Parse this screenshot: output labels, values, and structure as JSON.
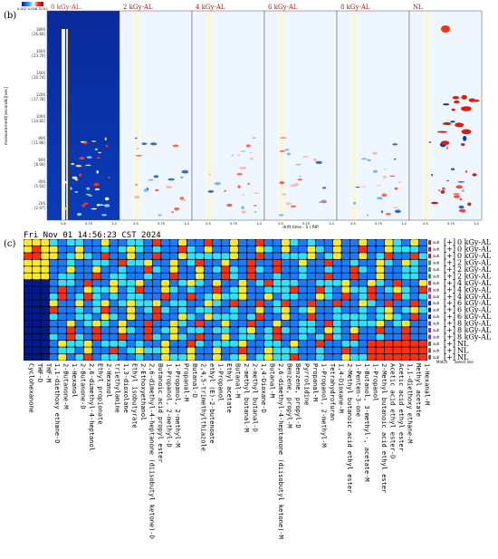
{
  "labels": {
    "b": "(b)",
    "c": "(c)"
  },
  "gcims": {
    "samples": [
      "0 kGy-AL",
      "2 kGy-AL",
      "4 kGy-AL",
      "6 kGy-AL",
      "8 kGy-AL",
      "NL"
    ],
    "ylabel": "measurement[seconds][sec]",
    "xlabel": "drift time - 1 / RIP",
    "yticks": [
      "1800",
      "1600",
      "1400",
      "1200",
      "1000",
      "800",
      "600",
      "400",
      "200"
    ],
    "yticks_ret": [
      "[26.66]",
      "[23.70]",
      "[20.74]",
      "[17.78]",
      "[14.82]",
      "[11.86]",
      "[8.90]",
      "[5.93]",
      "[2.97]"
    ],
    "xticks_first": [
      "0.6",
      "0.75",
      "1.0"
    ],
    "xticks_other": [
      "0.5",
      "0.75",
      "1.0"
    ],
    "colorbar": [
      "0.002",
      "0.006",
      "0.011"
    ]
  },
  "fingerprint": {
    "timestamp": "Fri Nov 01 14:56:23 CST 2024",
    "rows": [
      {
        "id": "s1",
        "label": "0 kGy-AL",
        "color": "#e01010"
      },
      {
        "id": "s2",
        "label": "0 kGy-AL",
        "color": "#e01010"
      },
      {
        "id": "s3",
        "label": "0 kGy-AL",
        "color": "#e01010"
      },
      {
        "id": "s4",
        "label": "2 kGy-AL",
        "color": "#10b010"
      },
      {
        "id": "s5",
        "label": "2 kGy-AL",
        "color": "#10b010"
      },
      {
        "id": "s6",
        "label": "2 kGy-AL",
        "color": "#10b010"
      },
      {
        "id": "s7",
        "label": "4 kGy-AL",
        "color": "#e010e0"
      },
      {
        "id": "s8",
        "label": "4 kGy-AL",
        "color": "#e010e0"
      },
      {
        "id": "s9",
        "label": "4 kGy-AL",
        "color": "#e010e0"
      },
      {
        "id": "s10",
        "label": "6 kGy-AL",
        "color": "#1010e0"
      },
      {
        "id": "s11",
        "label": "6 kGy-AL",
        "color": "#1010e0"
      },
      {
        "id": "s12",
        "label": "6 kGy-AL",
        "color": "#1010e0"
      },
      {
        "id": "s13",
        "label": "8 kGy-AL",
        "color": "#a020e0"
      },
      {
        "id": "s14",
        "label": "8 kGy-AL",
        "color": "#a020e0"
      },
      {
        "id": "s15",
        "label": "8 kGy-AL",
        "color": "#a020e0"
      },
      {
        "id": "s16",
        "label": "NL",
        "color": "#606060"
      },
      {
        "id": "s17",
        "label": "NL",
        "color": "#606060"
      },
      {
        "id": "s18",
        "label": "NL",
        "color": "#606060"
      }
    ],
    "legend_prefix": "[+]",
    "sample_tag": "sub",
    "match": "Match",
    "select_line": "Select line",
    "compounds": [
      "Cyclohexanone",
      "THF-D",
      "THF-M",
      "1,1-diethoxy ethane-D",
      "2-Butanone-M",
      "1-Hexanol",
      "2-Butanone-D",
      "2,6-dimethyl-4-heptanol",
      "Ethyl propionate",
      "2-Hexanol",
      "triethylamine",
      "1,3-dioxolane",
      "Ethyl isobutyrate",
      "2-Ethoxyethanol",
      "2,6-dimethyl-4-heptanone (diisobutyl ketone)-D",
      "Butanoic acid propyl ester",
      "1-Propanol, 2-methyl-D",
      "1-Propanol, 2-methyl-M",
      "Propanal-M",
      "Butanal-D",
      "2,4,5-trimethylthiazole",
      "ethyl (E)-2-butenoate",
      "1-Propanol",
      "Ethyl acetate",
      "Butanal-M",
      "2-methyl butanal-M",
      "2-methyl butanal-D",
      "1,4-Dioxane-D",
      "Butanal-M",
      "2,6-dimethyl-4-heptanone (diisobutyl ketone)-M",
      "Benzene, propyl-M",
      "Benzene, propyl-D",
      "Pyrrolidine",
      "Propanal-M",
      "1-Propanol, 2-methyl-M",
      "Tetrahydrofuran",
      "1,4-Dioxane-M",
      "2-Methyl butanoic acid ethyl ester",
      "1-Penten-3-one",
      "1-Butanol, 3-methyl-, acetate-M",
      "1-Propanol",
      "2-Methyl butanoic acid ethyl ester",
      "Acetic acid ethyl ester-D",
      "Acetic acid ethyl ester",
      "1,1-diethoxy ethane-M",
      "Methyl acetate",
      "1-Hexanal-M"
    ]
  }
}
